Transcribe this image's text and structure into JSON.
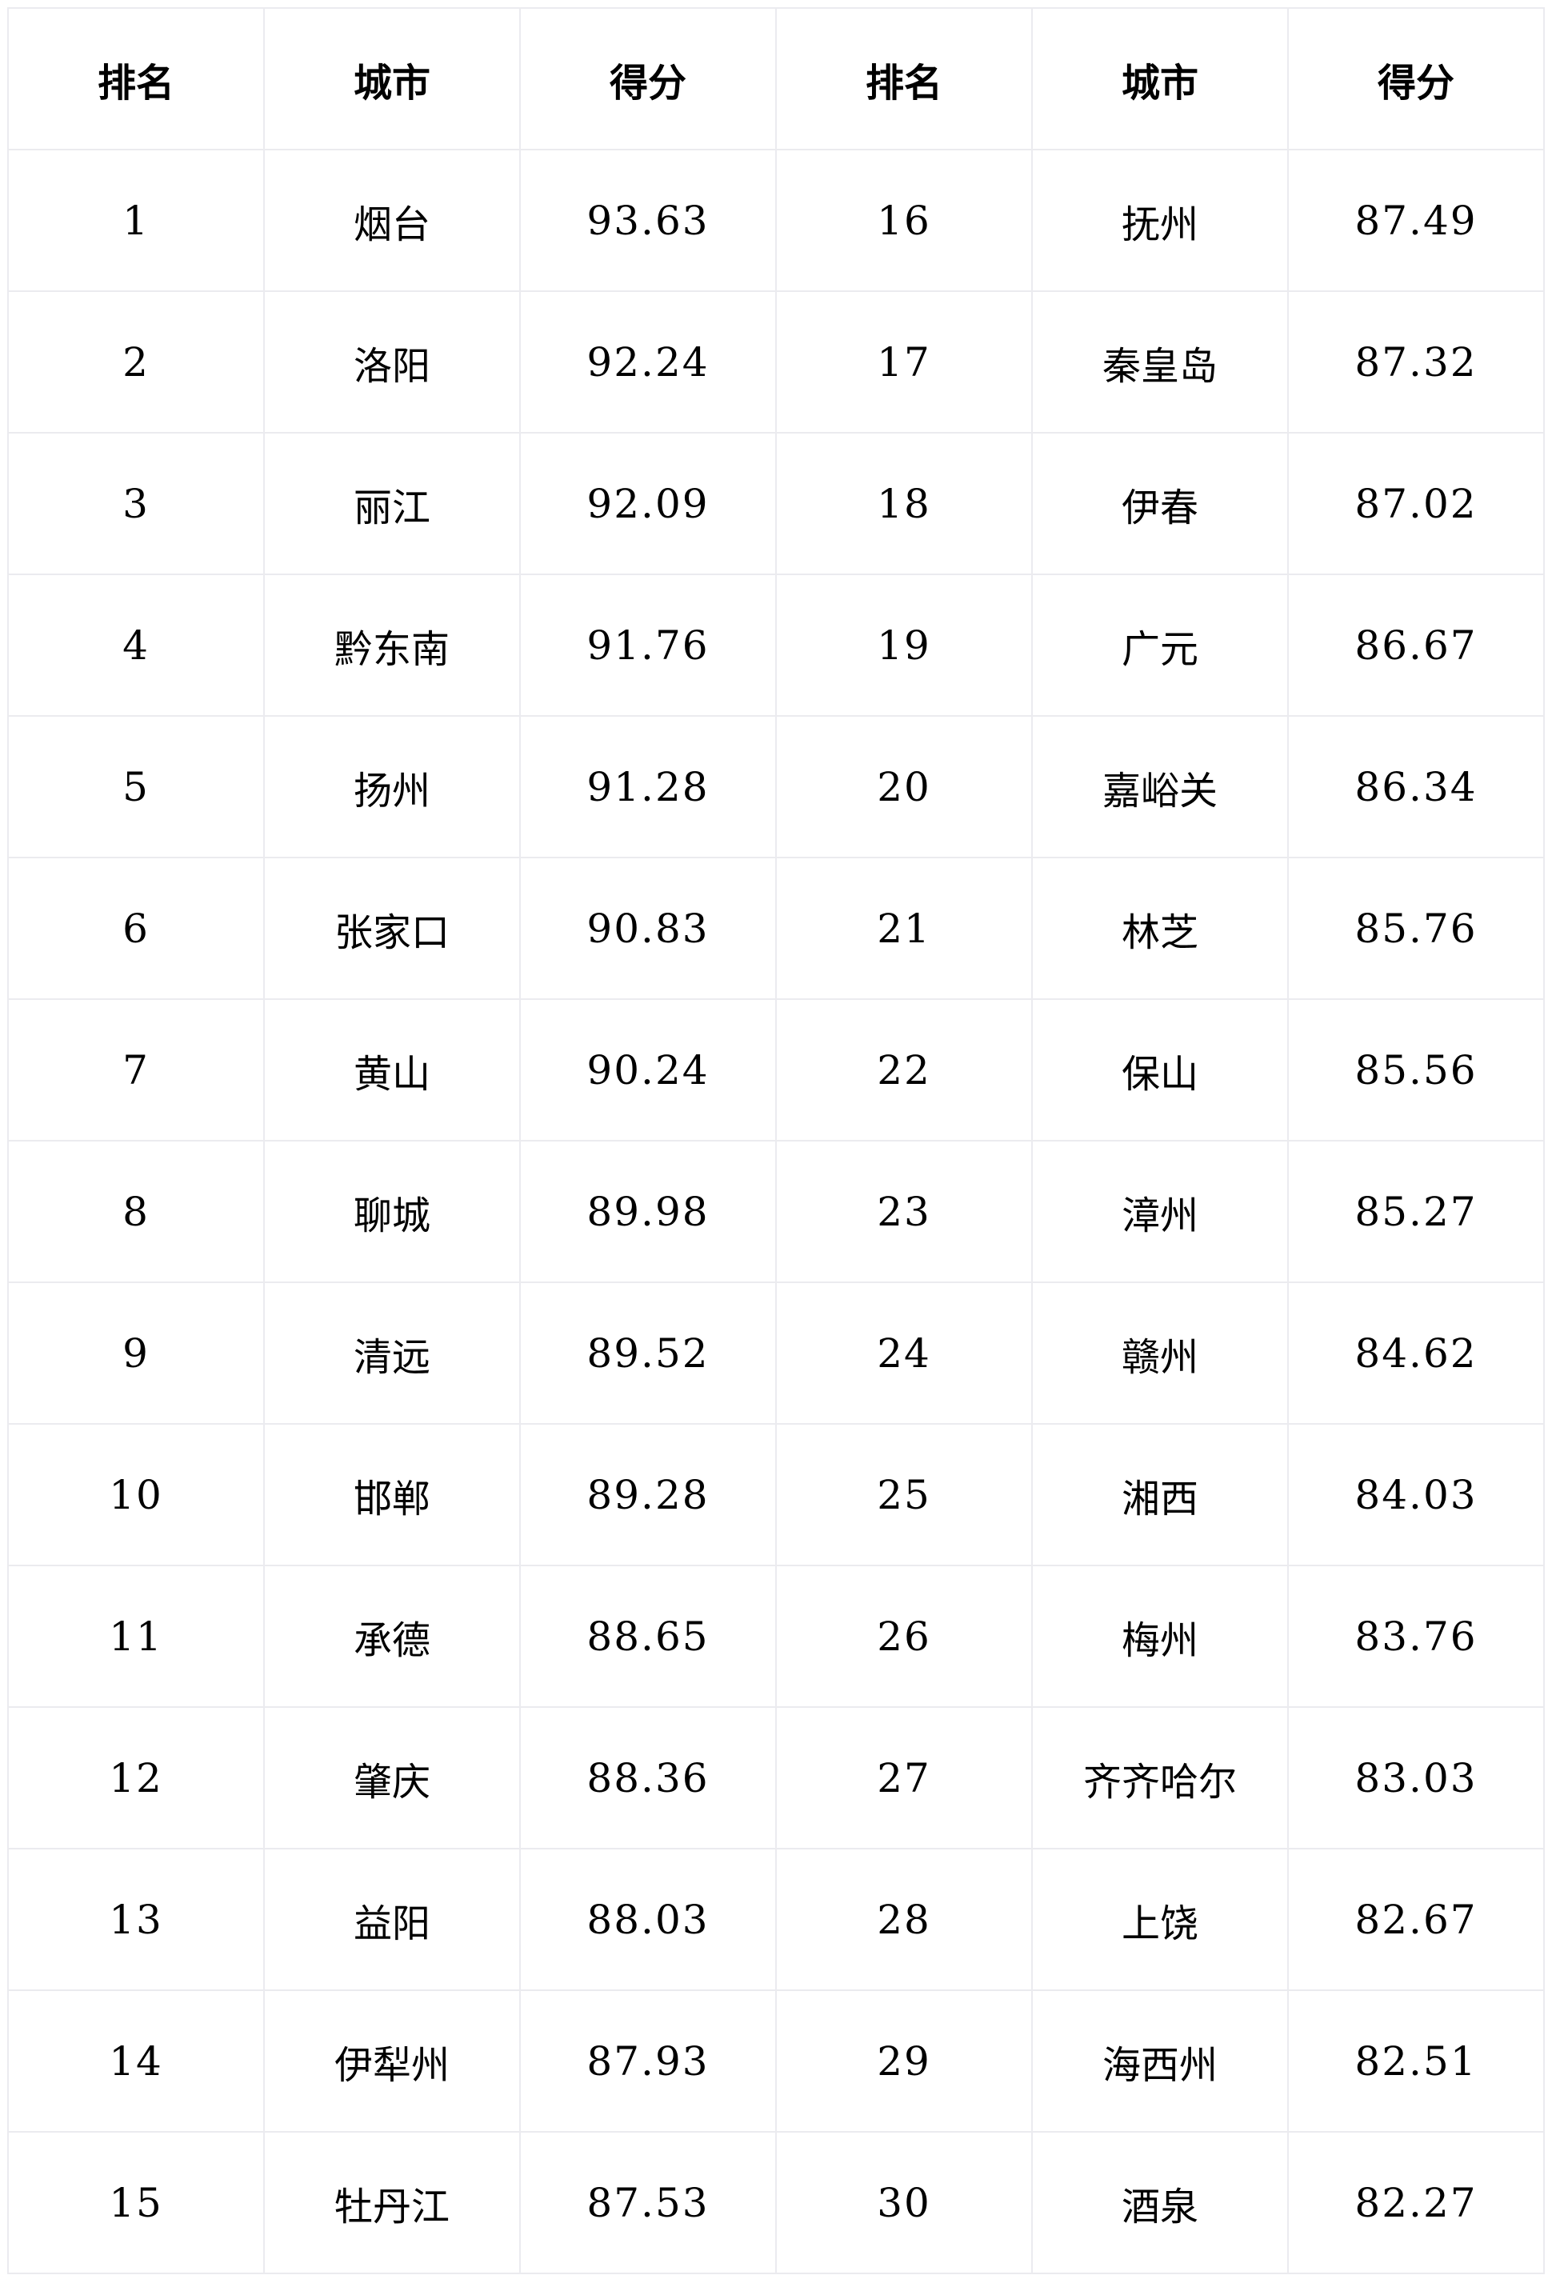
{
  "table": {
    "headers": [
      "排名",
      "城市",
      "得分",
      "排名",
      "城市",
      "得分"
    ],
    "rows": [
      [
        "1",
        "烟台",
        "93.63",
        "16",
        "抚州",
        "87.49"
      ],
      [
        "2",
        "洛阳",
        "92.24",
        "17",
        "秦皇岛",
        "87.32"
      ],
      [
        "3",
        "丽江",
        "92.09",
        "18",
        "伊春",
        "87.02"
      ],
      [
        "4",
        "黔东南",
        "91.76",
        "19",
        "广元",
        "86.67"
      ],
      [
        "5",
        "扬州",
        "91.28",
        "20",
        "嘉峪关",
        "86.34"
      ],
      [
        "6",
        "张家口",
        "90.83",
        "21",
        "林芝",
        "85.76"
      ],
      [
        "7",
        "黄山",
        "90.24",
        "22",
        "保山",
        "85.56"
      ],
      [
        "8",
        "聊城",
        "89.98",
        "23",
        "漳州",
        "85.27"
      ],
      [
        "9",
        "清远",
        "89.52",
        "24",
        "赣州",
        "84.62"
      ],
      [
        "10",
        "邯郸",
        "89.28",
        "25",
        "湘西",
        "84.03"
      ],
      [
        "11",
        "承德",
        "88.65",
        "26",
        "梅州",
        "83.76"
      ],
      [
        "12",
        "肇庆",
        "88.36",
        "27",
        "齐齐哈尔",
        "83.03"
      ],
      [
        "13",
        "益阳",
        "88.03",
        "28",
        "上饶",
        "82.67"
      ],
      [
        "14",
        "伊犁州",
        "87.93",
        "29",
        "海西州",
        "82.51"
      ],
      [
        "15",
        "牡丹江",
        "87.53",
        "30",
        "酒泉",
        "82.27"
      ]
    ]
  }
}
